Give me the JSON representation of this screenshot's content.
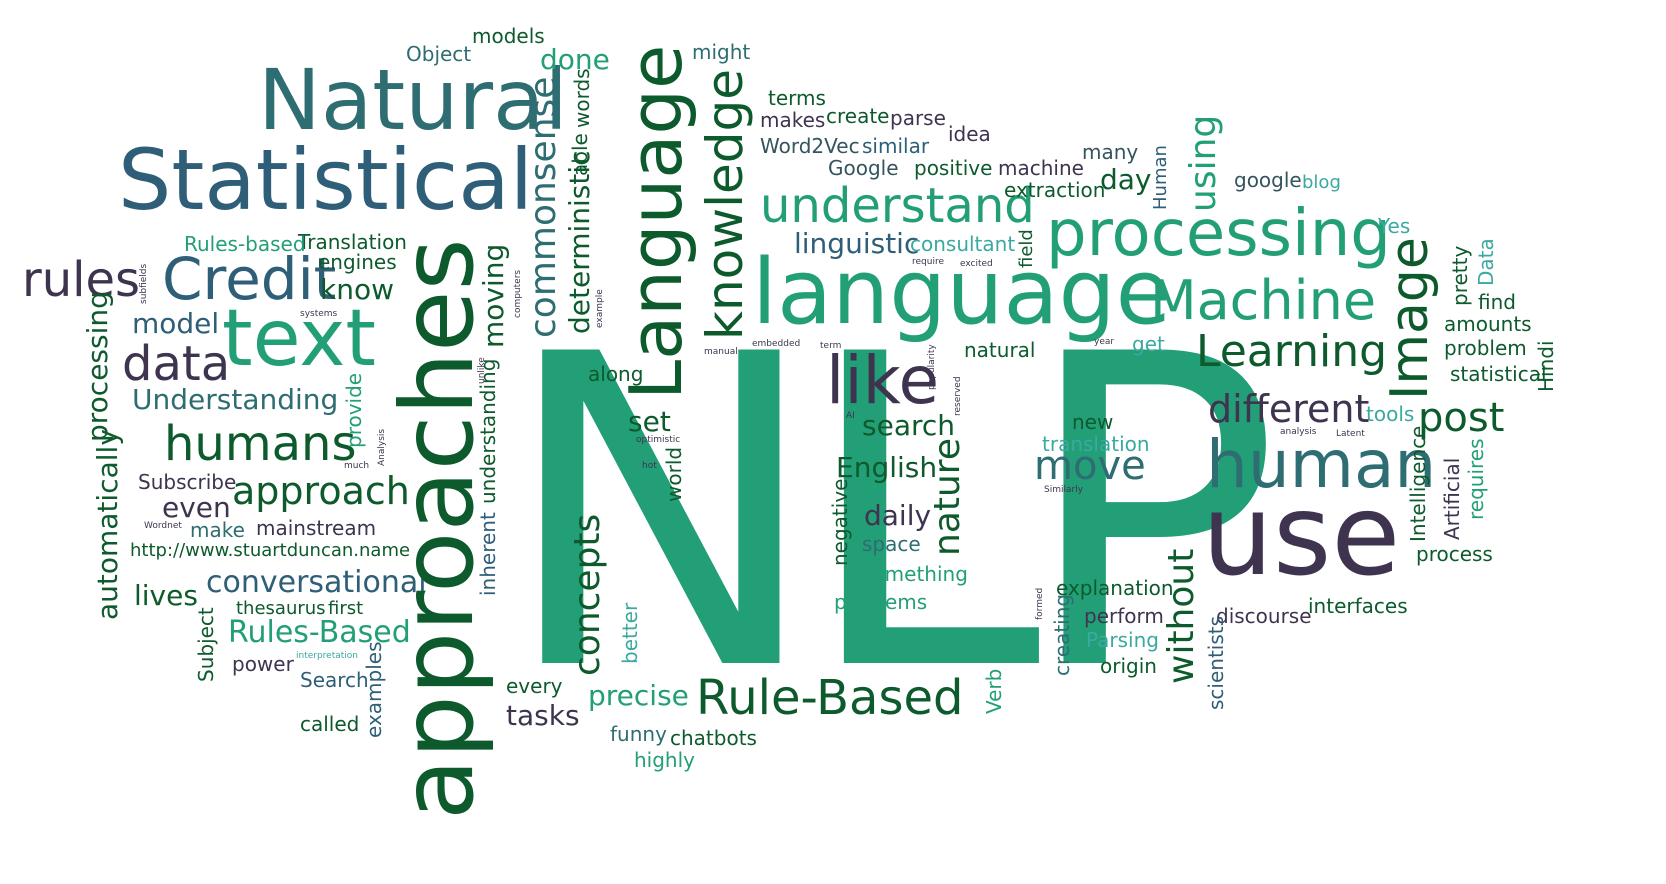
{
  "words": {
    "nlp": "NLP",
    "approaches": "approaches",
    "natural_big": "Natural",
    "statistical_big": "Statistical",
    "language_v": "Language",
    "language": "language",
    "processing": "processing",
    "use": "use",
    "human": "human",
    "text": "text",
    "credit": "Credit",
    "knowledge": "knowledge",
    "machine": "Machine",
    "learning": "Learning",
    "understand": "understand",
    "like": "like",
    "rule_based": "Rule-Based",
    "humans": "humans",
    "data": "data",
    "rules": "rules",
    "image": "Image",
    "post": "post",
    "different": "different",
    "move": "move",
    "approach": "approach",
    "commonsense": "commonsense",
    "deterministic": "deterministic",
    "conversational": "conversational",
    "rules_based2": "Rules-Based",
    "understanding_cap": "Understanding",
    "model": "model",
    "know": "know",
    "engines": "engines",
    "translation_cap": "Translation",
    "rules_based": "Rules-based",
    "models": "models",
    "object": "Object",
    "done": "done",
    "might": "might",
    "terms": "terms",
    "makes": "makes",
    "create": "create",
    "parse": "parse",
    "idea": "idea",
    "word2vec": "Word2Vec",
    "similar": "similar",
    "google_cap": "Google",
    "positive": "positive",
    "machine_small": "machine",
    "many": "many",
    "extraction": "extraction",
    "day": "day",
    "using": "using",
    "human_v": "Human",
    "google": "google",
    "blog": "blog",
    "yes": "Yes",
    "linguistic": "linguistic",
    "consultant": "consultant",
    "field": "field",
    "require": "require",
    "excited": "excited",
    "natural": "natural",
    "get": "get",
    "year": "year",
    "term": "term",
    "embedded": "embedded",
    "manual": "manual",
    "popularity": "popularity",
    "reserved": "reserved",
    "ai": "AI",
    "search": "search",
    "english": "English",
    "nature": "nature",
    "daily": "daily",
    "space": "space",
    "negative": "negative",
    "something": "something",
    "problems": "problems",
    "new": "new",
    "translation": "translation",
    "similarly": "Similarly",
    "set": "set",
    "along": "along",
    "optimistic": "optimistic",
    "hot": "hot",
    "world": "world",
    "concepts": "concepts",
    "better": "better",
    "precise": "precise",
    "every": "every",
    "tasks": "tasks",
    "funny": "funny",
    "highly": "highly",
    "chatbots": "chatbots",
    "moving": "moving",
    "understanding": "understanding",
    "inherent": "inherent",
    "computers": "computers",
    "unlike": "unlike",
    "example": "example",
    "able": "able",
    "words": "words",
    "automatically": "automatically",
    "provide": "provide",
    "analysis": "Analysis",
    "much": "much",
    "subscribe": "Subscribe",
    "even": "even",
    "wordnet": "Wordnet",
    "make": "make",
    "mainstream": "mainstream",
    "url": "http://www.stuartduncan.name",
    "lives": "lives",
    "thesaurus": "thesaurus",
    "first": "first",
    "subject": "Subject",
    "power": "power",
    "interpretation": "interpretation",
    "search_cap": "Search",
    "called": "called",
    "examples": "examples",
    "subfields": "subfields",
    "systems": "systems",
    "verb": "Verb",
    "formed": "formed",
    "creating": "creating",
    "explanation": "explanation",
    "perform": "perform",
    "parsing": "Parsing",
    "origin": "origin",
    "without": "without",
    "scientists": "scientists",
    "discourse": "discourse",
    "interfaces": "interfaces",
    "intelligence": "Intelligence",
    "artificial": "Artificial",
    "requires": "requires",
    "process": "process",
    "pretty": "pretty",
    "data_cap": "Data",
    "find": "find",
    "amounts": "amounts",
    "problem": "problem",
    "statistical": "statistical",
    "hindi": "Hindi",
    "tools": "tools",
    "analysis_small": "analysis",
    "latent": "Latent"
  }
}
